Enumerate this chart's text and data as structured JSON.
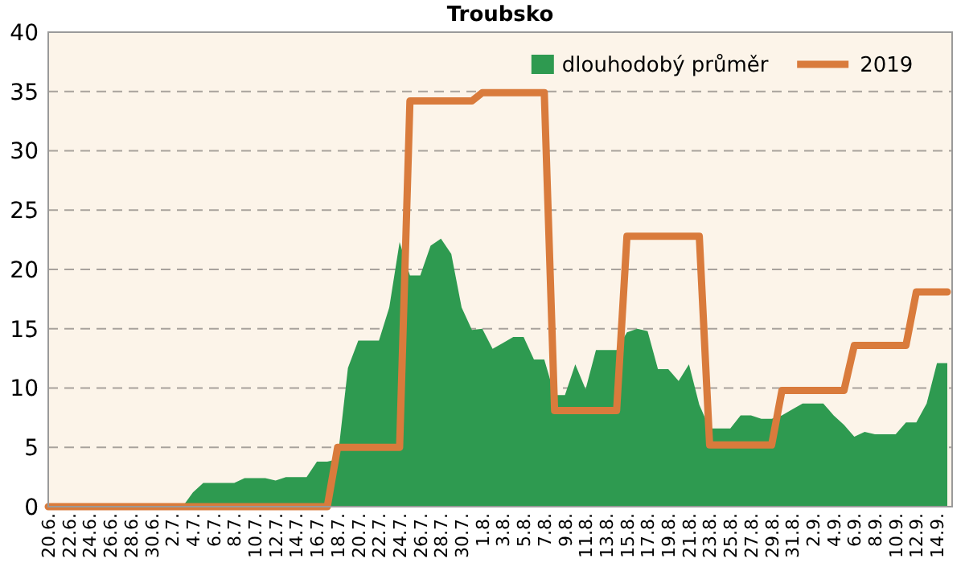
{
  "chart_data": {
    "type": "area",
    "title": "Troubsko",
    "categories": [
      "20.6.",
      null,
      "22.6.",
      null,
      "24.6.",
      null,
      "26.6.",
      null,
      "28.6.",
      null,
      "30.6.",
      null,
      "2.7.",
      null,
      "4.7.",
      null,
      "6.7.",
      null,
      "8.7.",
      null,
      "10.7.",
      null,
      "12.7.",
      null,
      "14.7.",
      null,
      "16.7.",
      null,
      "18.7.",
      null,
      "20.7.",
      null,
      "22.7.",
      null,
      "24.7.",
      null,
      "26.7.",
      null,
      "28.7.",
      null,
      "30.7.",
      null,
      "1.8.",
      null,
      "3.8.",
      null,
      "5.8.",
      null,
      "7.8.",
      null,
      "9.8.",
      null,
      "11.8.",
      null,
      "13.8.",
      null,
      "15.8.",
      null,
      "17.8.",
      null,
      "19.8.",
      null,
      "21.8.",
      null,
      "23.8.",
      null,
      "25.8.",
      null,
      "27.8.",
      null,
      "29.8.",
      null,
      "31.8.",
      null,
      "2.9.",
      null,
      "4.9.",
      null,
      "6.9.",
      null,
      "8.9.",
      null,
      "10.9.",
      null,
      "12.9.",
      null,
      "14.9.",
      null
    ],
    "series": [
      {
        "name": "dlouhodobý průměr",
        "color": "#2e9a50",
        "values": [
          0,
          0,
          0,
          0,
          0,
          0,
          0,
          0,
          0,
          0,
          0,
          0,
          0,
          0,
          1.2,
          2,
          2,
          2,
          2,
          2.4,
          2.4,
          2.4,
          2.2,
          2.5,
          2.5,
          2.5,
          3.8,
          3.8,
          4,
          11.7,
          14,
          14,
          14,
          16.8,
          22.3,
          19.5,
          19.5,
          22,
          22.6,
          21.3,
          16.8,
          14.9,
          15,
          13.3,
          13.8,
          14.3,
          14.3,
          12.4,
          12.4,
          9.4,
          9.4,
          12,
          9.9,
          13.2,
          13.2,
          13.2,
          14.7,
          15,
          14.8,
          11.6,
          11.6,
          10.6,
          12,
          8.6,
          6.6,
          6.6,
          6.6,
          7.7,
          7.7,
          7.4,
          7.4,
          7.7,
          8.2,
          8.7,
          8.7,
          8.7,
          7.7,
          6.9,
          5.9,
          6.3,
          6.1,
          6.1,
          6.1,
          7.1,
          7.1,
          8.7,
          12.1,
          12.1
        ]
      },
      {
        "name": "2019",
        "type": "line",
        "color": "#d97b3c",
        "values": [
          0,
          0,
          0,
          0,
          0,
          0,
          0,
          0,
          0,
          0,
          0,
          0,
          0,
          0,
          0,
          0,
          0,
          0,
          0,
          0,
          0,
          0,
          0,
          0,
          0,
          0,
          0,
          0,
          5,
          5,
          5,
          5,
          5,
          5,
          5,
          34.2,
          34.2,
          34.2,
          34.2,
          34.2,
          34.2,
          34.2,
          34.9,
          34.9,
          34.9,
          34.9,
          34.9,
          34.9,
          34.9,
          8.1,
          8.1,
          8.1,
          8.1,
          8.1,
          8.1,
          8.1,
          22.8,
          22.8,
          22.8,
          22.8,
          22.8,
          22.8,
          22.8,
          22.8,
          5.2,
          5.2,
          5.2,
          5.2,
          5.2,
          5.2,
          5.2,
          9.8,
          9.8,
          9.8,
          9.8,
          9.8,
          9.8,
          9.8,
          13.6,
          13.6,
          13.6,
          13.6,
          13.6,
          13.6,
          18.1,
          18.1,
          18.1,
          18.1
        ]
      }
    ],
    "ylim": [
      0,
      40
    ],
    "yticks": [
      0,
      5,
      10,
      15,
      20,
      25,
      30,
      35,
      40
    ],
    "grid": "y",
    "legend": "top right",
    "line_style": "solid",
    "marker": "none"
  }
}
